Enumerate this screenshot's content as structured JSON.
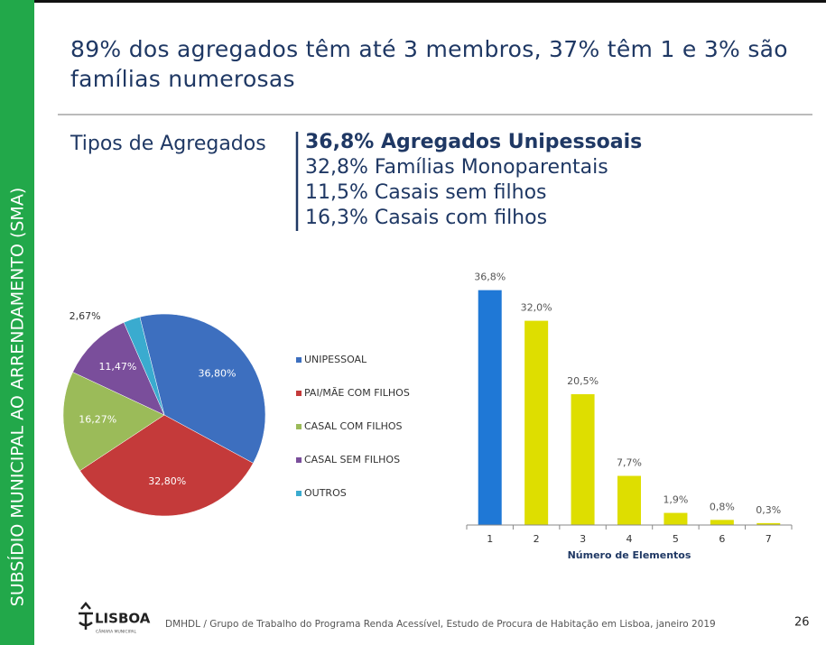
{
  "slide": {
    "side_label": "SUBSÍDIO MUNICIPAL AO ARRENDAMENTO (SMA)",
    "title": "89% dos agregados têm até 3 membros, 37% têm 1 e 3% são famílias numerosas",
    "subtitle": "Tipos de Agregados",
    "highlights": [
      "36,8% Agregados Unipessoais",
      "32,8% Famílias Monoparentais",
      "11,5% Casais sem filhos",
      "16,3% Casais com filhos"
    ],
    "logo": "LISBOA",
    "logo_sub": "CÂMARA MUNICIPAL",
    "footer": "DMHDL / Grupo de Trabalho do Programa Renda Acessível, Estudo de Procura de Habitação em Lisboa, janeiro 2019",
    "page_number": 26
  },
  "chart_data": [
    {
      "type": "pie",
      "categories": [
        "UNIPESSOAL",
        "PAI/MÃE COM FILHOS",
        "CASAL COM FILHOS",
        "CASAL SEM FILHOS",
        "OUTROS"
      ],
      "values": [
        36.8,
        32.8,
        16.27,
        11.47,
        2.67
      ],
      "value_labels": [
        "36,80%",
        "32,80%",
        "16,27%",
        "11,47%",
        "2,67%"
      ],
      "colors": [
        "#3d6fbf",
        "#c43a3a",
        "#9bbb59",
        "#7a4e9b",
        "#3aabcf"
      ],
      "legend": "right"
    },
    {
      "type": "bar",
      "categories": [
        "1",
        "2",
        "3",
        "4",
        "5",
        "6",
        "7"
      ],
      "values": [
        36.8,
        32.0,
        20.5,
        7.7,
        1.9,
        0.8,
        0.3
      ],
      "value_labels": [
        "36,8%",
        "32,0%",
        "20,5%",
        "7,7%",
        "1,9%",
        "0,8%",
        "0,3%"
      ],
      "colors": [
        "#1f78d6",
        "#dede00",
        "#dede00",
        "#dede00",
        "#dede00",
        "#dede00",
        "#dede00"
      ],
      "x_label": "Número de Elementos",
      "ylim": [
        0,
        40
      ]
    }
  ]
}
